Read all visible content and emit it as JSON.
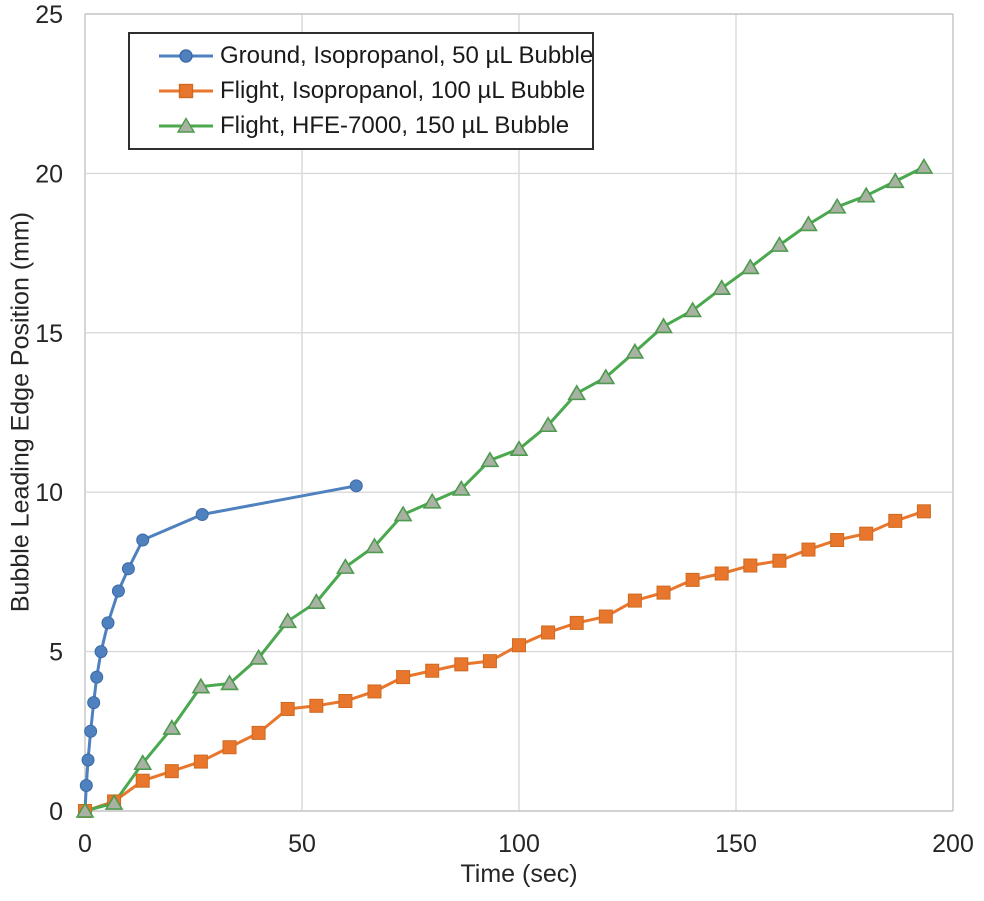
{
  "figure": {
    "background": "#ffffff"
  },
  "colors": {
    "grid": "#d9d9d9",
    "plot_border": "#c3c3c3",
    "tick_text": "#262626",
    "legend_border": "#2e2e2e",
    "series_blue": "#4e81bd",
    "series_orange": "#e8762c",
    "series_green": "#4aa84e",
    "green_marker_fill": "#a8b2a3"
  },
  "chart_data": {
    "type": "line",
    "title": "",
    "xlabel": "Time (sec)",
    "ylabel": "Bubble Leading Edge Position (mm)",
    "xlim": [
      0,
      200
    ],
    "ylim": [
      0,
      25
    ],
    "x_ticks": [
      0,
      50,
      100,
      150,
      200
    ],
    "y_ticks": [
      0,
      5,
      10,
      15,
      20,
      25
    ],
    "grid": true,
    "legend_position": "top-left-inside",
    "series": [
      {
        "name": "Ground, Isopropanol, 50 µL Bubble",
        "marker": "circle",
        "line_color": "#4e81bd",
        "marker_fill": "#4e81bd",
        "marker_stroke": "#3a6aa8",
        "x": [
          0,
          0.3,
          0.7,
          1.3,
          2,
          2.7,
          3.7,
          5.3,
          7.7,
          10,
          13.3,
          27,
          62.5
        ],
        "y": [
          0,
          0.8,
          1.6,
          2.5,
          3.4,
          4.2,
          5.0,
          5.9,
          6.9,
          7.6,
          8.5,
          9.3,
          10.2
        ]
      },
      {
        "name": "Flight, Isopropanol, 100 µL Bubble",
        "marker": "square",
        "line_color": "#e8762c",
        "marker_fill": "#e8762c",
        "marker_stroke": "#cf6a20",
        "x": [
          0,
          6.7,
          13.3,
          20,
          26.7,
          33.3,
          40,
          46.7,
          53.3,
          60,
          66.7,
          73.3,
          80,
          86.7,
          93.3,
          100,
          106.7,
          113.3,
          120,
          126.7,
          133.3,
          140,
          146.7,
          153.3,
          160,
          166.7,
          173.3,
          180,
          186.7,
          193.3
        ],
        "y": [
          0,
          0.3,
          0.95,
          1.25,
          1.55,
          2.0,
          2.45,
          3.2,
          3.3,
          3.45,
          3.75,
          4.2,
          4.4,
          4.6,
          4.7,
          5.2,
          5.6,
          5.9,
          6.1,
          6.6,
          6.85,
          7.25,
          7.45,
          7.7,
          7.85,
          8.2,
          8.5,
          8.7,
          9.1,
          9.4
        ]
      },
      {
        "name": "Flight, HFE-7000, 150 µL Bubble",
        "marker": "triangle",
        "line_color": "#4aa84e",
        "marker_fill": "#a8b2a3",
        "marker_stroke": "#4e9a4e",
        "x": [
          0,
          6.7,
          13.3,
          20,
          26.7,
          33.3,
          40,
          46.7,
          53.3,
          60,
          66.7,
          73.3,
          80,
          86.7,
          93.3,
          100,
          106.7,
          113.3,
          120,
          126.7,
          133.3,
          140,
          146.7,
          153.3,
          160,
          166.7,
          173.3,
          180,
          186.7,
          193.3
        ],
        "y": [
          0,
          0.25,
          1.5,
          2.6,
          3.9,
          4.0,
          4.8,
          5.95,
          6.55,
          7.65,
          8.3,
          9.3,
          9.7,
          10.1,
          11.0,
          11.35,
          12.1,
          13.1,
          13.6,
          14.4,
          15.2,
          15.7,
          16.4,
          17.05,
          17.75,
          18.4,
          18.95,
          19.3,
          19.75,
          20.2
        ]
      }
    ]
  }
}
